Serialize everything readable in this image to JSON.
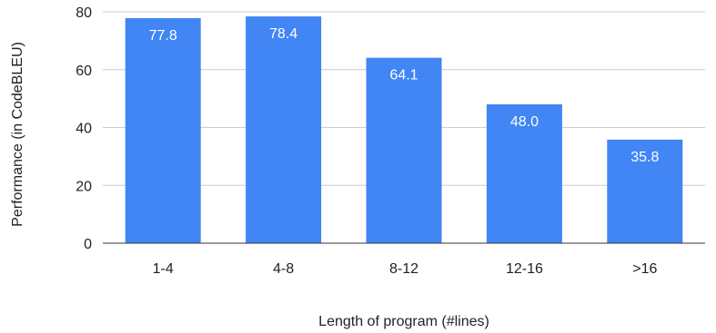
{
  "chart_data": {
    "type": "bar",
    "categories": [
      "1-4",
      "4-8",
      "8-12",
      "12-16",
      ">16"
    ],
    "values": [
      77.8,
      78.4,
      64.1,
      48.0,
      35.8
    ],
    "value_labels": [
      "77.8",
      "78.4",
      "64.1",
      "48.0",
      "35.8"
    ],
    "xlabel": "Length of program (#lines)",
    "ylabel": "Performance (in CodeBLEU)",
    "ylim": [
      0,
      80
    ],
    "yticks": [
      "0",
      "20",
      "40",
      "60",
      "80"
    ],
    "grid": true,
    "bar_color": "#4285f4"
  }
}
